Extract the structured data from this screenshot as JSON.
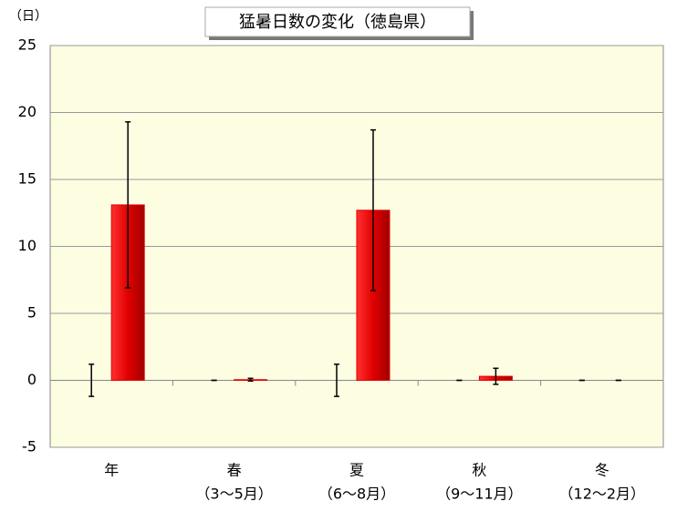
{
  "chart_data": {
    "type": "bar",
    "title": "猛暑日数の変化（徳島県）",
    "y_label": "（日）",
    "categories": [
      [
        "年"
      ],
      [
        "春",
        "（3～5月）"
      ],
      [
        "夏",
        "（6～8月）"
      ],
      [
        "秋",
        "（9～11月）"
      ],
      [
        "冬",
        "（12～2月）"
      ]
    ],
    "series": [
      {
        "color": "#e00000",
        "values": [
          0,
          0,
          0,
          0,
          0
        ],
        "errors": [
          1.2,
          0,
          1.2,
          0,
          0
        ]
      },
      {
        "color": "#e00000",
        "values": [
          13.1,
          0.05,
          12.7,
          0.3,
          0
        ],
        "errors": [
          6.2,
          0.1,
          6.0,
          0.6,
          0
        ]
      }
    ],
    "ylim": [
      -5,
      25
    ],
    "yticks": [
      -5,
      0,
      5,
      10,
      15,
      20,
      25
    ],
    "grid": true
  }
}
